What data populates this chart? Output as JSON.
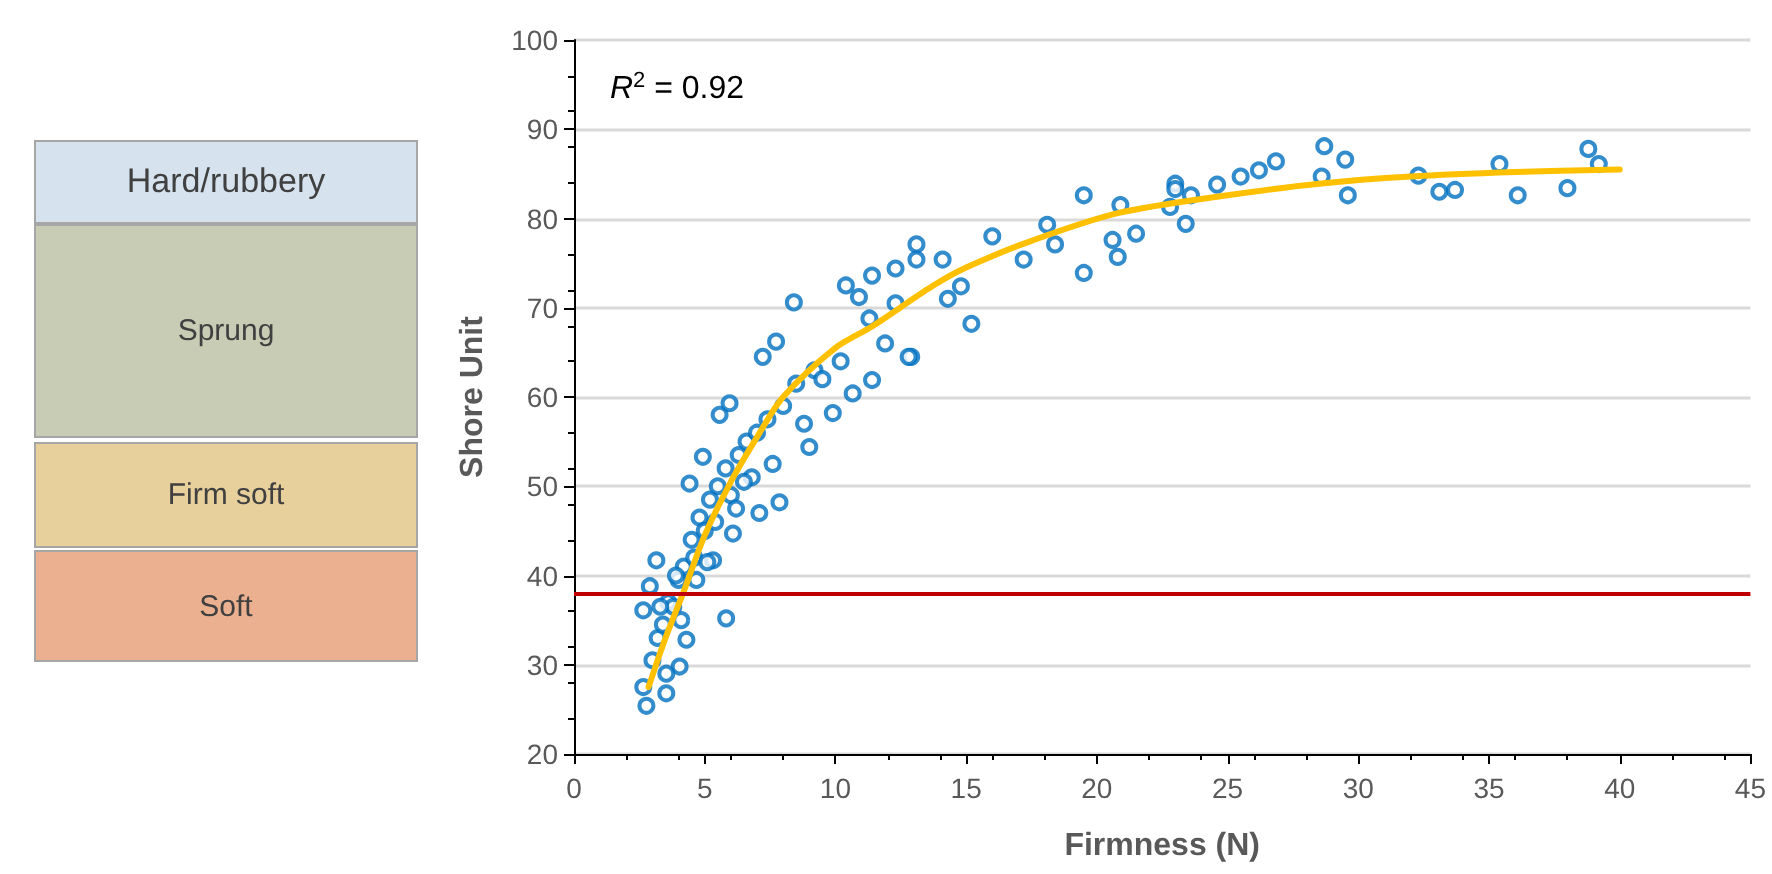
{
  "chart_data": {
    "type": "scatter",
    "xlabel": "Firmness (N)",
    "ylabel": "Shore Unit",
    "xlim": [
      0,
      45
    ],
    "xticks": [
      0,
      5,
      10,
      15,
      20,
      25,
      30,
      35,
      40,
      45
    ],
    "ylim": [
      20,
      100
    ],
    "yticks": [
      20,
      30,
      40,
      50,
      60,
      70,
      80,
      90,
      100
    ],
    "grid": "y",
    "marker": "circle",
    "annotations": [
      "R$^{2}$ = 0.92",
      "Hard/rubbery",
      "Sprung",
      "Firm soft",
      "Soft"
    ],
    "ref_lines": [
      {
        "axis": "y",
        "value": 38,
        "color": "#c00000"
      }
    ],
    "series": [
      {
        "color": "#0070c0",
        "x": [
          28.7,
          29.5,
          26.85,
          26.2,
          25.5,
          24.6,
          23.0,
          23.0,
          23.6,
          22.8,
          23.4,
          19.5,
          20.9,
          21.5,
          20.6,
          20.8,
          19.5,
          18.1,
          18.4,
          17.2,
          16.0,
          15.2,
          12.9,
          13.1,
          13.1,
          14.1,
          14.8,
          14.3,
          12.3,
          11.4,
          10.4,
          10.9,
          12.3,
          11.3,
          11.9,
          28.6,
          29.6,
          32.3,
          33.1,
          33.7,
          35.4,
          36.1,
          38.0,
          38.8,
          39.2,
          2.77,
          2.65,
          3.53,
          5.82,
          2.65,
          2.9,
          3.15,
          4.42,
          4.93,
          5.57,
          5.95,
          7.22,
          7.73,
          8.41,
          7.86,
          9.0,
          10.66,
          9.9,
          11.4,
          12.8,
          7.09,
          6.08,
          5.32,
          4.68,
          4.3,
          4.04,
          3.53,
          3.0,
          3.2,
          3.4,
          3.6,
          3.8,
          4.0,
          4.2,
          4.5,
          4.8,
          5.0,
          5.2,
          5.5,
          5.8,
          6.0,
          6.3,
          6.6,
          7.0,
          7.4,
          8.0,
          8.5,
          9.2,
          9.5,
          10.2,
          3.3,
          3.9,
          4.6,
          5.4,
          6.2,
          6.8,
          7.6,
          8.8,
          4.1,
          5.1,
          6.5
        ],
        "values": [
          88.1,
          86.6,
          86.4,
          85.4,
          84.7,
          83.8,
          83.9,
          83.3,
          82.6,
          81.3,
          79.4,
          82.6,
          81.5,
          78.3,
          77.6,
          75.7,
          73.9,
          79.3,
          77.1,
          75.4,
          78.0,
          68.2,
          64.5,
          77.1,
          75.4,
          75.4,
          72.4,
          71.0,
          74.4,
          73.6,
          72.5,
          71.2,
          70.5,
          68.8,
          66.0,
          84.7,
          82.6,
          84.8,
          83.0,
          83.2,
          86.1,
          82.6,
          83.4,
          87.8,
          86.1,
          25.4,
          27.5,
          26.8,
          35.2,
          36.1,
          38.8,
          41.7,
          50.3,
          53.3,
          58.0,
          59.3,
          64.5,
          66.2,
          70.6,
          48.2,
          54.4,
          60.4,
          58.2,
          61.9,
          64.5,
          47.0,
          44.7,
          41.7,
          39.5,
          32.8,
          29.8,
          29.0,
          30.5,
          33.0,
          34.5,
          37.0,
          36.5,
          39.5,
          41.0,
          44.0,
          46.5,
          45.0,
          48.5,
          50.0,
          52.0,
          49.0,
          53.5,
          55.0,
          56.0,
          57.5,
          59.0,
          61.5,
          63.0,
          62.0,
          64.0,
          36.5,
          40.0,
          42.0,
          46.0,
          47.5,
          51.0,
          52.5,
          57.0,
          35.0,
          41.5,
          50.5
        ]
      },
      {
        "type": "line",
        "color": "#ffc000",
        "marker": "none",
        "x": [
          2.85,
          3.5,
          4.17,
          5,
          6,
          7,
          8,
          10,
          11.4,
          13.7,
          15,
          17.5,
          20.8,
          25,
          28.5,
          32,
          36,
          40
        ],
        "values": [
          27.5,
          33,
          38,
          44.5,
          50.5,
          55.5,
          60,
          65.5,
          67.9,
          72.4,
          74.5,
          77.5,
          80.6,
          82.6,
          83.9,
          84.7,
          85.2,
          85.5
        ]
      }
    ]
  }
}
